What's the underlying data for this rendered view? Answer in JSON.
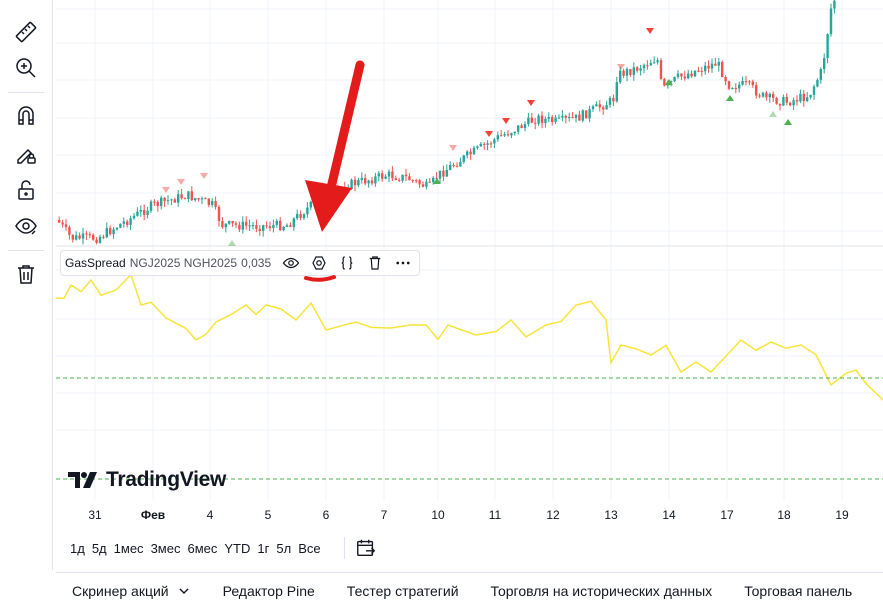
{
  "left_toolbar": {
    "tools": [
      {
        "name": "ruler-icon"
      },
      {
        "name": "zoom-in-icon"
      },
      {
        "name": "magnet-icon"
      },
      {
        "name": "lock-drawing-icon"
      },
      {
        "name": "lock-icon"
      },
      {
        "name": "eye-icon"
      },
      {
        "name": "trash-icon"
      }
    ]
  },
  "indicator_legend": {
    "name": "GasSpread",
    "params": "NGJ2025 NGH2025",
    "value": "0,035",
    "buttons": [
      "eye-icon",
      "settings-icon",
      "source-code-icon",
      "trash-icon",
      "more-icon"
    ]
  },
  "logo": {
    "text": "TradingView"
  },
  "x_axis": {
    "labels": [
      {
        "text": "31",
        "bold": false
      },
      {
        "text": "Фев",
        "bold": true
      },
      {
        "text": "4",
        "bold": false
      },
      {
        "text": "5",
        "bold": false
      },
      {
        "text": "6",
        "bold": false
      },
      {
        "text": "7",
        "bold": false
      },
      {
        "text": "10",
        "bold": false
      },
      {
        "text": "11",
        "bold": false
      },
      {
        "text": "12",
        "bold": false
      },
      {
        "text": "13",
        "bold": false
      },
      {
        "text": "14",
        "bold": false
      },
      {
        "text": "17",
        "bold": false
      },
      {
        "text": "18",
        "bold": false
      },
      {
        "text": "19",
        "bold": false
      }
    ]
  },
  "range_buttons": [
    "1д",
    "5д",
    "1мес",
    "3мес",
    "6мес",
    "YTD",
    "1г",
    "5л",
    "Все"
  ],
  "bottom_tabs": [
    {
      "label": "Скринер акций",
      "has_dropdown": true
    },
    {
      "label": "Редактор Pine",
      "has_dropdown": false
    },
    {
      "label": "Тестер стратегий",
      "has_dropdown": false
    },
    {
      "label": "Торговля на исторических данных",
      "has_dropdown": false
    },
    {
      "label": "Торговая панель",
      "has_dropdown": false
    }
  ],
  "colors": {
    "up": "#26a69a",
    "down": "#ef5350",
    "spread_line": "#f7e53b",
    "dashed": "#4caf50",
    "annotation": "#e31b1b",
    "grid": "#f0f3fa",
    "sell_marker": "#f44336",
    "buy_marker": "#4caf50"
  }
}
